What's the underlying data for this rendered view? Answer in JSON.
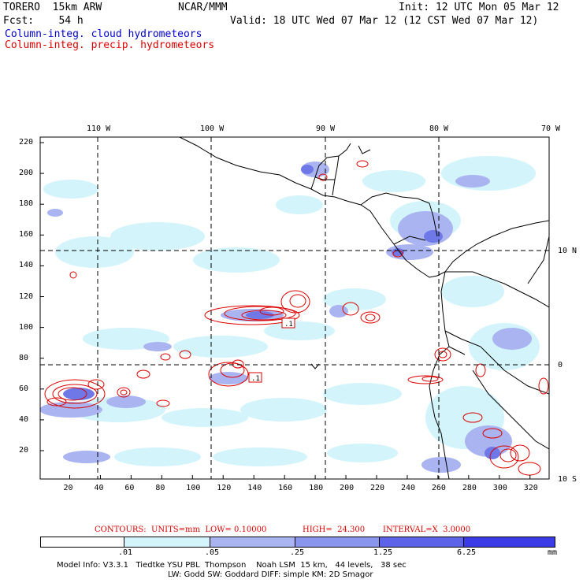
{
  "header": {
    "model": "TORERO  15km ARW",
    "center": "NCAR/MMM",
    "init": "Init: 12 UTC Mon 05 Mar 12",
    "fcst": "Fcst:    54 h",
    "valid": "Valid: 18 UTC Wed 07 Mar 12 (12 CST Wed 07 Mar 12)",
    "field_cloud": "Column-integ. cloud hydrometeors",
    "field_precip": "Column-integ. precip. hydrometeors"
  },
  "map": {
    "lon_labels": [
      "110 W",
      "100 W",
      "90 W",
      "80 W",
      "70 W"
    ],
    "lat_labels": [
      "10 N",
      "0",
      "10 S"
    ],
    "y_ticks": [
      "220",
      "200",
      "180",
      "160",
      "140",
      "120",
      "100",
      "80",
      "60",
      "40",
      "20"
    ],
    "x_ticks": [
      "20",
      "40",
      "60",
      "80",
      "100",
      "120",
      "140",
      "160",
      "180",
      "200",
      "220",
      "240",
      "260",
      "280",
      "300",
      "320"
    ],
    "contour_labels": [
      ".1",
      ".1"
    ],
    "colors": {
      "cloud_light": "#d2f4fa",
      "cloud_mid": "#aab4f0",
      "cloud_dark": "#6e78e6",
      "precip_contour": "#dd0000",
      "coast": "#000000"
    }
  },
  "contour_info": {
    "units": "CONTOURS:  UNITS=mm  LOW= 0.10000",
    "high": "HIGH=  24.300",
    "interval": "INTERVAL=X  3.0000"
  },
  "colorbar": {
    "labels": [
      ".01",
      ".05",
      ".25",
      "1.25",
      "6.25"
    ],
    "unit": "mm",
    "colors": [
      "#ffffff",
      "#d2f4fa",
      "#aab4f0",
      "#8a96ec",
      "#5e64e8",
      "#3c3ce6",
      "#1e1ef0"
    ]
  },
  "footer": {
    "line1": "Model Info: V3.3.1   Tiedtke YSU PBL  Thompson    Noah LSM  15 km,   44 levels,   38 sec",
    "line2": "LW: Godd SW: Goddard DIFF: simple KM: 2D Smagor"
  }
}
